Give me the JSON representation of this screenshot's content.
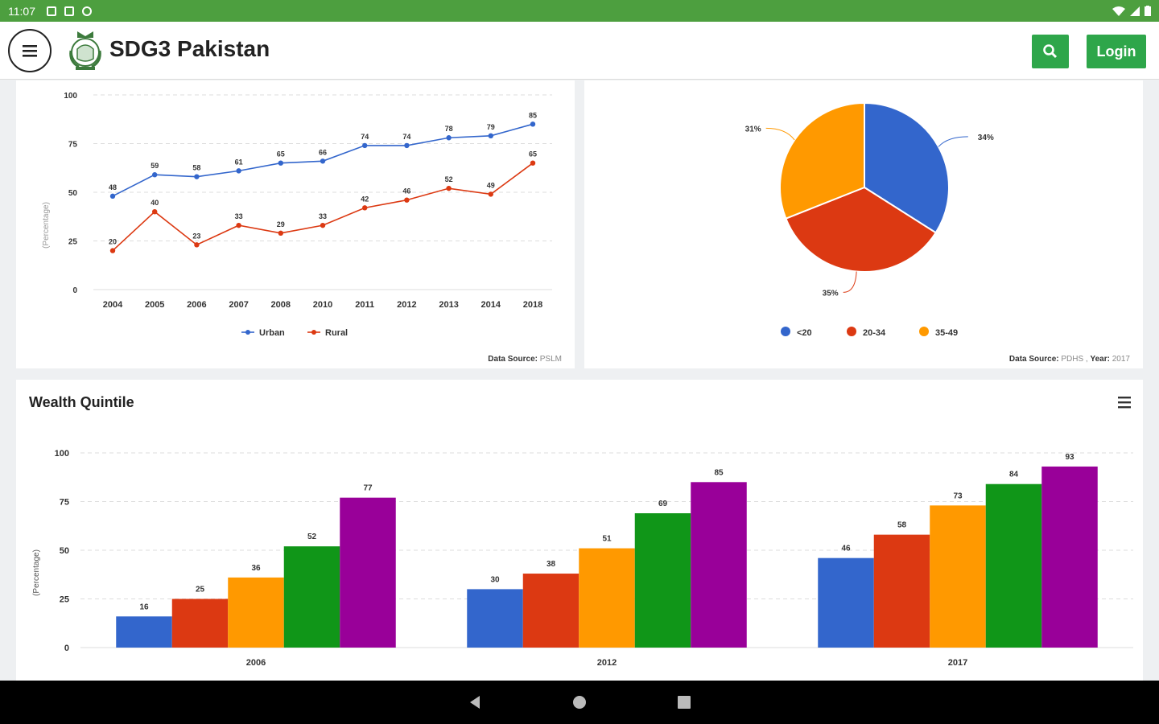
{
  "status_bar": {
    "time": "11:07"
  },
  "header": {
    "title": "SDG3 Pakistan",
    "login_label": "Login"
  },
  "line_chart": {
    "ylabel": "(Percentage)",
    "source_label": "Data Source:",
    "source_value": "PSLM",
    "colors": {
      "Urban": "#3366cc",
      "Rural": "#dc3912"
    }
  },
  "pie_chart": {
    "source_label": "Data Source:",
    "source_value": "PDHS ,",
    "year_label": "Year:",
    "year_value": "2017",
    "colors": [
      "#3366cc",
      "#dc3912",
      "#ff9900"
    ]
  },
  "wealth_chart": {
    "title": "Wealth Quintile",
    "ylabel": "(Percentage)",
    "colors": [
      "#3366cc",
      "#dc3912",
      "#ff9900",
      "#109618",
      "#990099"
    ]
  },
  "chart_data": [
    {
      "type": "line",
      "categories": [
        "2004",
        "2005",
        "2006",
        "2007",
        "2008",
        "2010",
        "2011",
        "2012",
        "2013",
        "2014",
        "2018"
      ],
      "series": [
        {
          "name": "Urban",
          "values": [
            48,
            59,
            58,
            61,
            65,
            66,
            74,
            74,
            78,
            79,
            85
          ]
        },
        {
          "name": "Rural",
          "values": [
            20,
            40,
            23,
            33,
            29,
            33,
            42,
            46,
            52,
            49,
            65
          ]
        }
      ],
      "ylabel": "(Percentage)",
      "ylim": [
        0,
        100
      ],
      "yticks": [
        0,
        25,
        50,
        75,
        100
      ],
      "ytick_labels": [
        "0",
        "25",
        "50",
        "75",
        "100"
      ],
      "grid": true,
      "legend": "bottom"
    },
    {
      "type": "pie",
      "labels": [
        "<20",
        "20-34",
        "35-49"
      ],
      "values": [
        34,
        35,
        31
      ],
      "value_labels": [
        "34%",
        "35%",
        "31%"
      ],
      "legend": "bottom"
    },
    {
      "type": "bar",
      "title": "Wealth Quintile",
      "categories": [
        "2006",
        "2012",
        "2017"
      ],
      "series": [
        {
          "values": [
            16,
            30,
            46
          ]
        },
        {
          "values": [
            25,
            38,
            58
          ]
        },
        {
          "values": [
            36,
            51,
            73
          ]
        },
        {
          "values": [
            52,
            69,
            84
          ]
        },
        {
          "values": [
            77,
            85,
            93
          ]
        }
      ],
      "ylabel": "(Percentage)",
      "ylim": [
        0,
        100
      ],
      "yticks": [
        0,
        25,
        50,
        75,
        100
      ],
      "ytick_labels": [
        "0",
        "25",
        "50",
        "75",
        "100"
      ],
      "grid": true
    }
  ]
}
